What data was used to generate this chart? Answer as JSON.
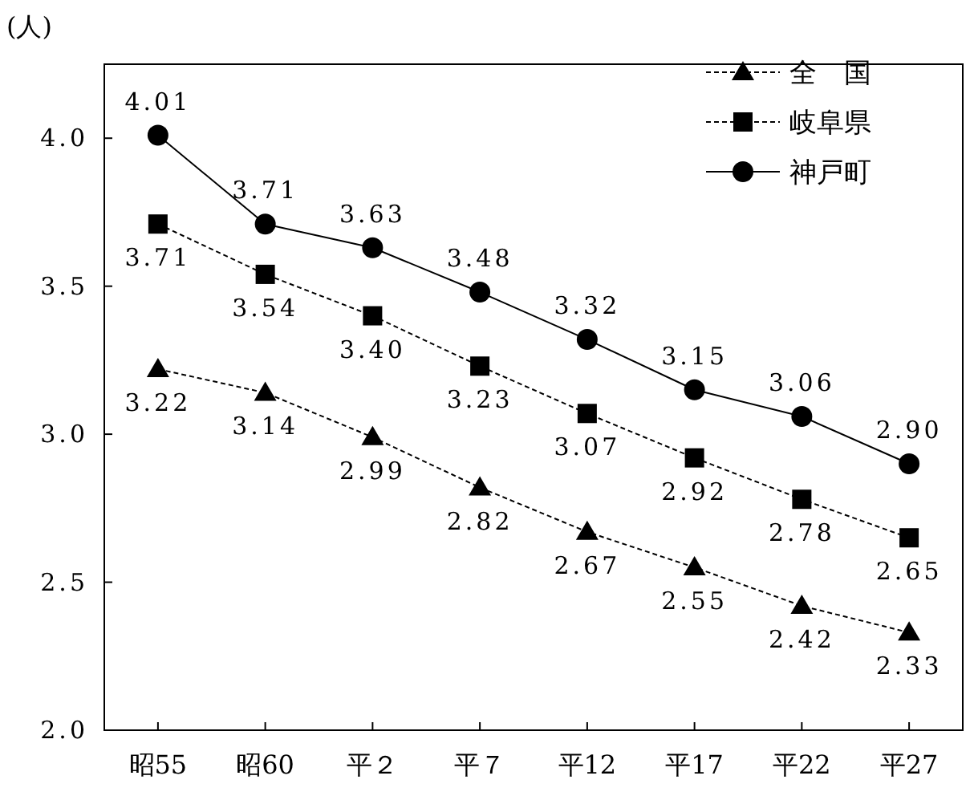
{
  "chart_data": {
    "type": "line",
    "ylabel": "(人)",
    "categories": [
      "昭55",
      "昭60",
      "平２",
      "平７",
      "平12",
      "平17",
      "平22",
      "平27"
    ],
    "series": [
      {
        "name": "全　国",
        "color": "#000000",
        "marker": "triangle",
        "line_style": "dashed",
        "values": [
          3.22,
          3.14,
          2.99,
          2.82,
          2.67,
          2.55,
          2.42,
          2.33
        ],
        "value_labels": [
          "3.22",
          "3.14",
          "2.99",
          "2.82",
          "2.67",
          "2.55",
          "2.42",
          "2.33"
        ]
      },
      {
        "name": "岐阜県",
        "color": "#000000",
        "marker": "square",
        "line_style": "dashed",
        "values": [
          3.71,
          3.54,
          3.4,
          3.23,
          3.07,
          2.92,
          2.78,
          2.65
        ],
        "value_labels": [
          "3.71",
          "3.54",
          "3.40",
          "3.23",
          "3.07",
          "2.92",
          "2.78",
          "2.65"
        ]
      },
      {
        "name": "神戸町",
        "color": "#000000",
        "marker": "circle",
        "line_style": "solid",
        "values": [
          4.01,
          3.71,
          3.63,
          3.48,
          3.32,
          3.15,
          3.06,
          2.9
        ],
        "value_labels": [
          "4.01",
          "3.71",
          "3.63",
          "3.48",
          "3.32",
          "3.15",
          "3.06",
          "2.90"
        ]
      }
    ],
    "ylim": [
      2.0,
      4.25
    ],
    "yticks": [
      {
        "value": 2.0,
        "label": "2.0"
      },
      {
        "value": 2.5,
        "label": "2.5"
      },
      {
        "value": 3.0,
        "label": "3.0"
      },
      {
        "value": 3.5,
        "label": "3.5"
      },
      {
        "value": 4.0,
        "label": "4.0"
      }
    ],
    "grid": false,
    "legend": "top right"
  }
}
